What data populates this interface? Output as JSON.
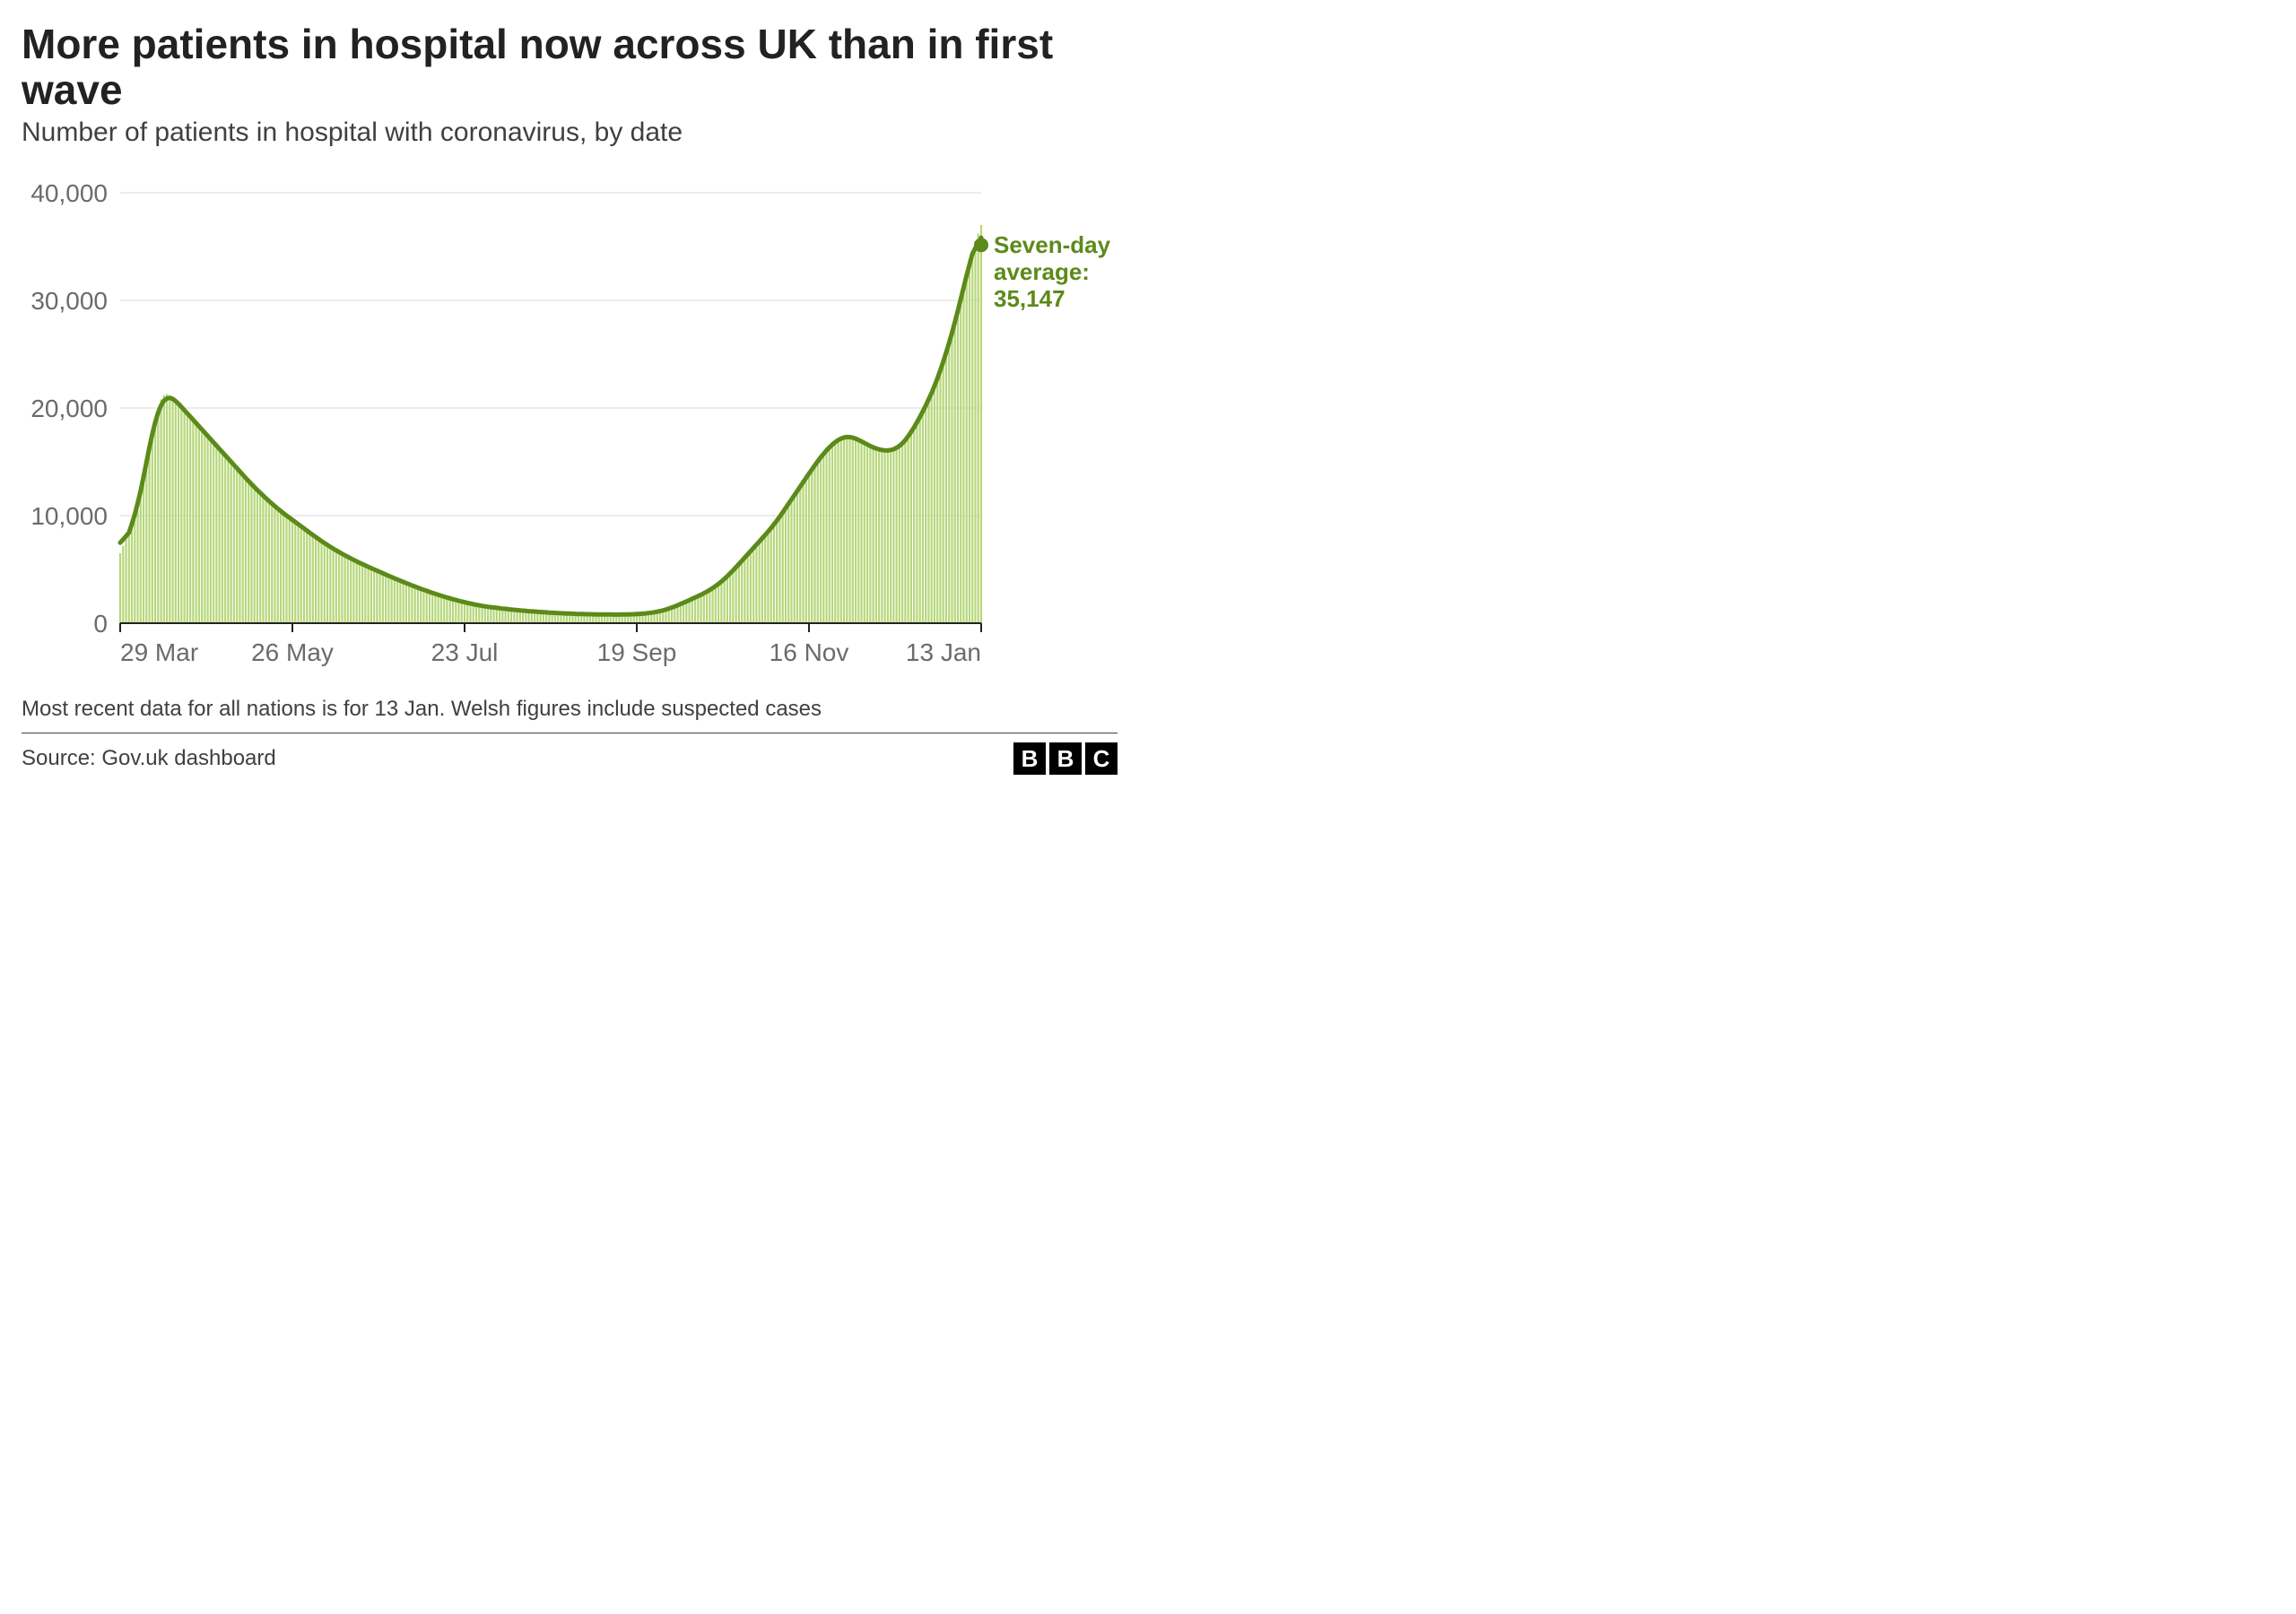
{
  "title": "More patients in hospital now across UK than in first wave",
  "subtitle": "Number of patients in hospital with coronavirus, by date",
  "footnote": "Most recent data for all nations is for 13 Jan. Welsh figures include suspected cases",
  "source": "Source: Gov.uk dashboard",
  "annotation": {
    "label_line1": "Seven-day",
    "label_line2": "average:",
    "value": "35,147",
    "color": "#5c8a1a"
  },
  "chart": {
    "type": "line_with_bars",
    "series_line_color": "#5c8a1a",
    "series_bar_color": "#b6d77a",
    "marker_color": "#5c8a1a",
    "grid_color": "#d9d9d9",
    "axis_color": "#222222",
    "tick_label_color": "#6b6b6b",
    "tick_label_fontsize": 28,
    "line_width": 5,
    "bar_width": 2.2,
    "marker_radius": 8,
    "background_color": "#ffffff",
    "ylim": [
      0,
      40000
    ],
    "ytick_step": 10000,
    "ytick_labels": [
      "0",
      "10,000",
      "20,000",
      "30,000",
      "40,000"
    ],
    "xtick_labels": [
      "29 Mar",
      "26 May",
      "23 Jul",
      "19 Sep",
      "16 Nov",
      "13 Jan"
    ],
    "daily_values": [
      6500,
      7200,
      7800,
      8400,
      9000,
      9600,
      10500,
      12000,
      13500,
      15000,
      16500,
      18000,
      19200,
      20000,
      20800,
      21200,
      21300,
      21200,
      21000,
      20700,
      20400,
      20100,
      19800,
      19500,
      19200,
      18900,
      18600,
      18300,
      18000,
      17700,
      17400,
      17100,
      16800,
      16500,
      16200,
      15900,
      15600,
      15300,
      15000,
      14700,
      14400,
      14100,
      13800,
      13500,
      13200,
      12900,
      12600,
      12350,
      12100,
      11850,
      11600,
      11350,
      11100,
      10850,
      10600,
      10400,
      10200,
      10000,
      9800,
      9600,
      9400,
      9200,
      9000,
      8800,
      8600,
      8400,
      8200,
      8000,
      7800,
      7620,
      7440,
      7260,
      7080,
      6900,
      6750,
      6600,
      6450,
      6300,
      6160,
      6020,
      5880,
      5740,
      5600,
      5480,
      5360,
      5240,
      5120,
      5000,
      4880,
      4760,
      4640,
      4520,
      4400,
      4280,
      4160,
      4050,
      3940,
      3830,
      3720,
      3610,
      3500,
      3400,
      3300,
      3200,
      3100,
      3000,
      2900,
      2810,
      2720,
      2630,
      2540,
      2460,
      2380,
      2300,
      2220,
      2150,
      2080,
      2010,
      1940,
      1880,
      1820,
      1760,
      1700,
      1650,
      1600,
      1560,
      1520,
      1480,
      1450,
      1420,
      1390,
      1360,
      1330,
      1300,
      1270,
      1240,
      1210,
      1180,
      1160,
      1140,
      1120,
      1100,
      1080,
      1060,
      1040,
      1020,
      1000,
      985,
      970,
      955,
      940,
      925,
      910,
      900,
      890,
      880,
      870,
      860,
      850,
      840,
      835,
      830,
      825,
      820,
      815,
      810,
      808,
      806,
      804,
      802,
      800,
      800,
      800,
      805,
      810,
      820,
      830,
      840,
      855,
      875,
      900,
      930,
      960,
      1000,
      1050,
      1100,
      1170,
      1250,
      1340,
      1440,
      1550,
      1660,
      1780,
      1900,
      2020,
      2140,
      2260,
      2380,
      2500,
      2640,
      2780,
      2920,
      3060,
      3200,
      3420,
      3640,
      3860,
      4080,
      4300,
      4600,
      4900,
      5200,
      5500,
      5800,
      6100,
      6400,
      6700,
      7000,
      7300,
      7600,
      7900,
      8200,
      8500,
      8800,
      9100,
      9500,
      9900,
      10300,
      10700,
      11100,
      11500,
      11900,
      12300,
      12700,
      13100,
      13500,
      13900,
      14300,
      14700,
      15100,
      15450,
      15800,
      16100,
      16400,
      16650,
      16900,
      17100,
      17260,
      17380,
      17430,
      17400,
      17320,
      17200,
      17060,
      16900,
      16740,
      16580,
      16440,
      16320,
      16200,
      16100,
      16040,
      16000,
      15980,
      16000,
      16060,
      16180,
      16360,
      16600,
      16900,
      17260,
      17680,
      18160,
      18660,
      19160,
      19660,
      20160,
      20700,
      21300,
      21950,
      22650,
      23400,
      24200,
      25050,
      25950,
      26900,
      27900,
      28950,
      30050,
      31200,
      32350,
      33500,
      34600,
      35500,
      36200,
      37000
    ],
    "final_avg_value": 35147
  }
}
